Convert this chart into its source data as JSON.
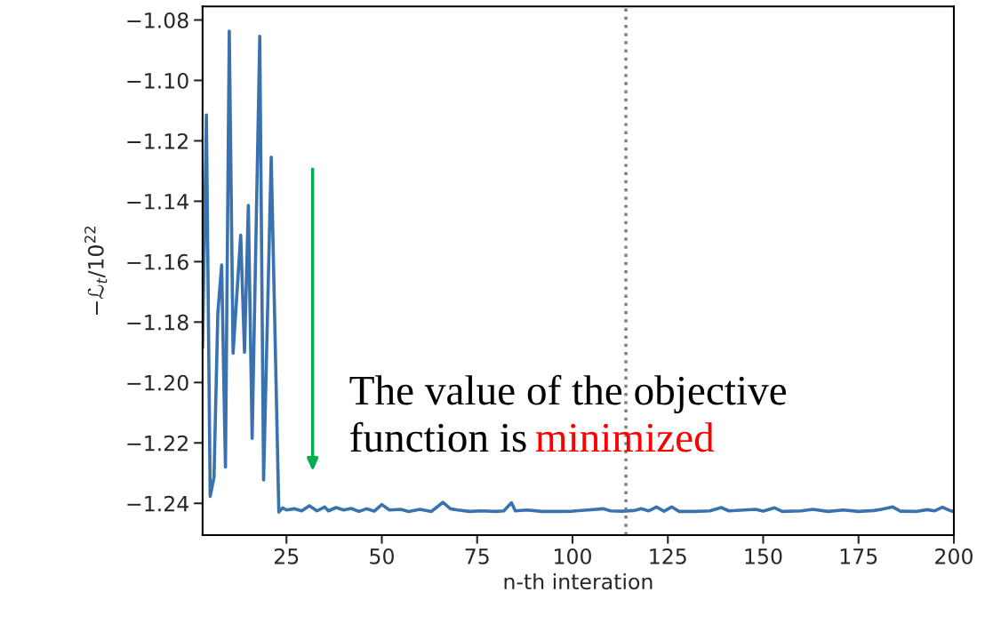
{
  "chart_data": {
    "type": "line",
    "xlabel": "n-th interation",
    "ylabel": "−ℒ$_{t}$/10$^{22}$",
    "series": [
      {
        "color": "#3a72b0",
        "x": [
          3,
          4,
          5,
          6,
          7,
          8,
          9,
          10,
          11,
          13,
          14,
          15,
          16,
          18,
          19,
          21,
          23,
          24,
          25,
          27,
          29,
          31,
          33,
          35,
          36,
          38,
          40,
          42,
          44,
          46,
          48,
          50,
          52,
          55,
          57,
          60,
          63,
          66,
          68,
          70,
          73,
          76,
          80,
          82,
          84,
          85,
          88,
          92,
          96,
          100,
          104,
          108,
          110,
          113,
          116,
          118,
          120,
          122,
          124,
          126,
          128,
          132,
          136,
          139,
          141,
          145,
          148,
          150,
          153,
          155,
          160,
          163,
          167,
          171,
          175,
          179,
          181,
          184,
          186,
          190,
          193,
          195,
          197,
          199,
          200
        ],
        "values": [
          -1.1886,
          -1.1114,
          -1.2377,
          -1.2314,
          -1.1771,
          -1.1611,
          -1.228,
          -1.0837,
          -1.1903,
          -1.1512,
          -1.19,
          -1.1414,
          -1.2185,
          -1.0854,
          -1.2323,
          -1.1254,
          -1.2429,
          -1.2415,
          -1.2422,
          -1.2418,
          -1.2425,
          -1.2408,
          -1.2425,
          -1.2412,
          -1.2425,
          -1.2414,
          -1.2422,
          -1.2417,
          -1.2427,
          -1.2418,
          -1.2426,
          -1.2404,
          -1.2422,
          -1.242,
          -1.2427,
          -1.242,
          -1.2427,
          -1.2397,
          -1.2418,
          -1.2422,
          -1.2427,
          -1.2425,
          -1.2427,
          -1.2425,
          -1.2398,
          -1.2425,
          -1.2422,
          -1.2427,
          -1.2427,
          -1.2426,
          -1.2422,
          -1.2418,
          -1.2425,
          -1.2426,
          -1.2424,
          -1.2418,
          -1.2425,
          -1.2412,
          -1.2426,
          -1.2412,
          -1.2427,
          -1.2427,
          -1.2425,
          -1.2414,
          -1.2425,
          -1.2422,
          -1.242,
          -1.2426,
          -1.2415,
          -1.2427,
          -1.2425,
          -1.242,
          -1.2427,
          -1.2422,
          -1.2427,
          -1.2424,
          -1.242,
          -1.2412,
          -1.2426,
          -1.2427,
          -1.2421,
          -1.2425,
          -1.2413,
          -1.2424,
          -1.2427
        ]
      }
    ],
    "xlim": [
      3,
      200
    ],
    "xticks": [
      25,
      50,
      75,
      100,
      125,
      150,
      175,
      200
    ],
    "ylim": [
      -1.2505,
      -1.0755
    ],
    "yticks": [
      {
        "value": -1.24,
        "label": "−1.24"
      },
      {
        "value": -1.22,
        "label": "−1.22"
      },
      {
        "value": -1.2,
        "label": "−1.20"
      },
      {
        "value": -1.18,
        "label": "−1.18"
      },
      {
        "value": -1.16,
        "label": "−1.16"
      },
      {
        "value": -1.14,
        "label": "−1.14"
      },
      {
        "value": -1.12,
        "label": "−1.12"
      },
      {
        "value": -1.1,
        "label": "−1.10"
      },
      {
        "value": -1.08,
        "label": "−1.08"
      }
    ],
    "ref_lines": [
      {
        "axis": "x",
        "value": 114,
        "color": "#808080",
        "line_style": "dotted"
      }
    ],
    "annotations": [
      "The value of the objective",
      "function is",
      "minimized"
    ],
    "grid": false,
    "legend": false,
    "line_style": "solid",
    "marker": "none"
  }
}
